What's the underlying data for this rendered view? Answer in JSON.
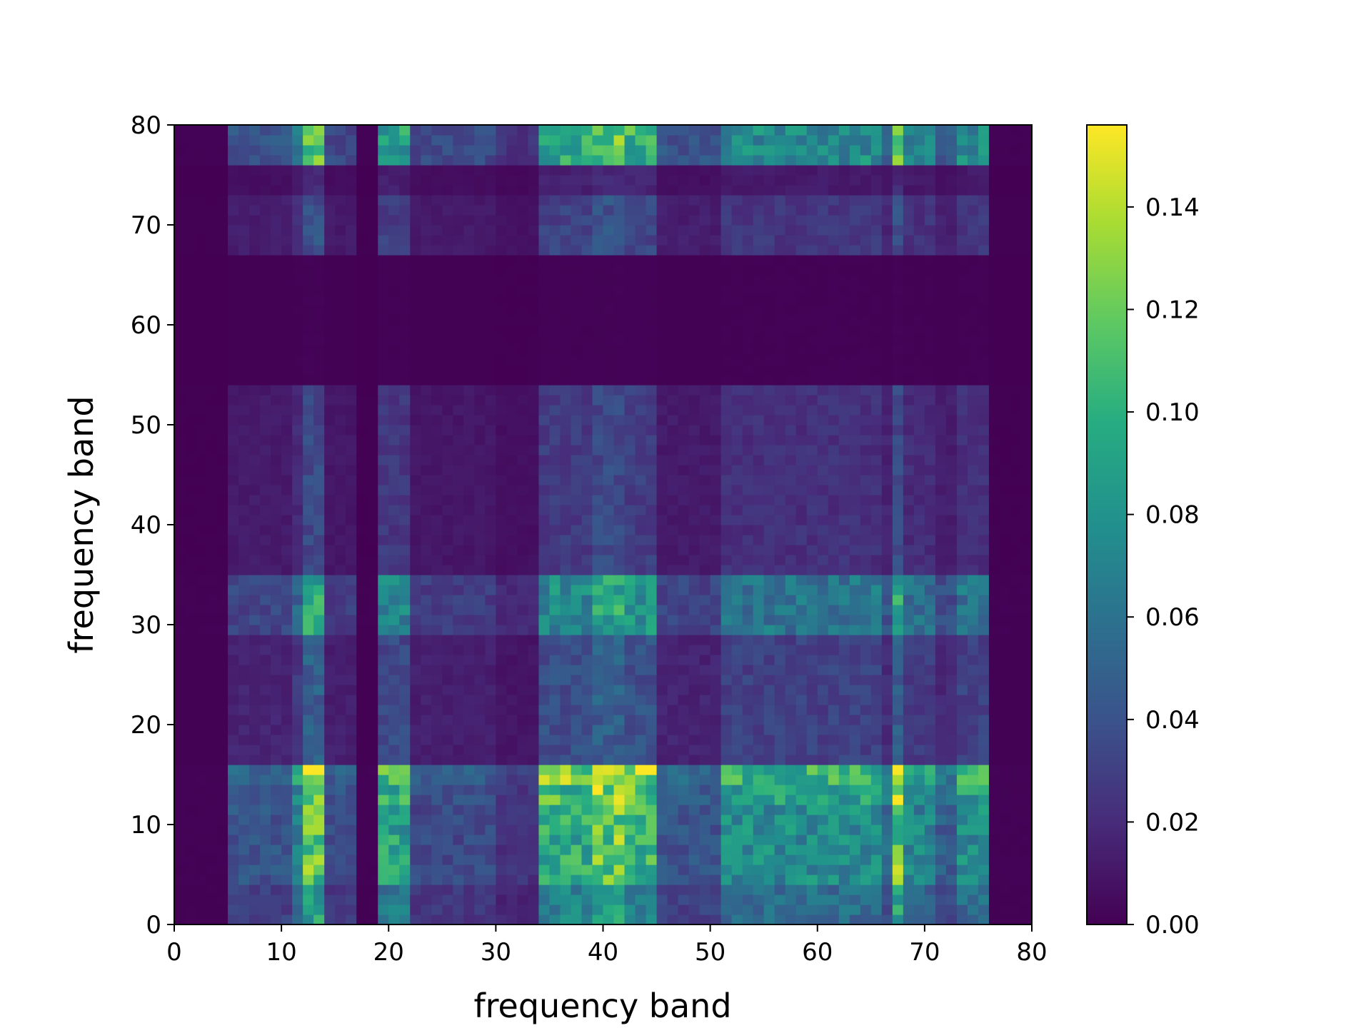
{
  "chart_data": {
    "type": "heatmap",
    "title": "",
    "xlabel": "frequency band",
    "ylabel": "frequency band",
    "xlim": [
      0,
      80
    ],
    "ylim": [
      0,
      80
    ],
    "x_ticks": [
      0,
      10,
      20,
      30,
      40,
      50,
      60,
      70,
      80
    ],
    "y_ticks": [
      0,
      10,
      20,
      30,
      40,
      50,
      60,
      70,
      80
    ],
    "grid_size": 80,
    "colormap": "viridis",
    "colorbar": {
      "vmin": 0.0,
      "vmax": 0.156,
      "ticks": [
        "0.00",
        "0.02",
        "0.04",
        "0.06",
        "0.08",
        "0.10",
        "0.12",
        "0.14"
      ],
      "placement": "right"
    },
    "grid": false,
    "row_bands": [
      {
        "y": [
          0,
          4
        ],
        "weight": 0.55
      },
      {
        "y": [
          4,
          12
        ],
        "weight": 0.75
      },
      {
        "y": [
          12,
          14
        ],
        "weight": 0.85
      },
      {
        "y": [
          14,
          16
        ],
        "weight": 1.0
      },
      {
        "y": [
          16,
          19
        ],
        "weight": 0.3
      },
      {
        "y": [
          19,
          29
        ],
        "weight": 0.3
      },
      {
        "y": [
          29,
          35
        ],
        "weight": 0.6
      },
      {
        "y": [
          35,
          54
        ],
        "weight": 0.22
      },
      {
        "y": [
          54,
          67
        ],
        "weight": 0.05
      },
      {
        "y": [
          67,
          73
        ],
        "weight": 0.25
      },
      {
        "y": [
          73,
          76
        ],
        "weight": 0.12
      },
      {
        "y": [
          76,
          80
        ],
        "weight": 0.75
      }
    ],
    "column_bands": [
      {
        "x": [
          0,
          5
        ],
        "weight": 0.05
      },
      {
        "x": [
          5,
          11
        ],
        "weight": 0.35
      },
      {
        "x": [
          11,
          12
        ],
        "weight": 0.55
      },
      {
        "x": [
          12,
          14
        ],
        "weight": 1.0
      },
      {
        "x": [
          14,
          17
        ],
        "weight": 0.3
      },
      {
        "x": [
          17,
          19
        ],
        "weight": 0.05
      },
      {
        "x": [
          19,
          22
        ],
        "weight": 0.75
      },
      {
        "x": [
          22,
          30
        ],
        "weight": 0.3
      },
      {
        "x": [
          30,
          34
        ],
        "weight": 0.2
      },
      {
        "x": [
          34,
          39
        ],
        "weight": 0.8
      },
      {
        "x": [
          39,
          42
        ],
        "weight": 1.0
      },
      {
        "x": [
          42,
          45
        ],
        "weight": 0.85
      },
      {
        "x": [
          45,
          51
        ],
        "weight": 0.35
      },
      {
        "x": [
          51,
          66
        ],
        "weight": 0.65
      },
      {
        "x": [
          66,
          67
        ],
        "weight": 0.45
      },
      {
        "x": [
          67,
          68
        ],
        "weight": 1.0
      },
      {
        "x": [
          68,
          71
        ],
        "weight": 0.6
      },
      {
        "x": [
          71,
          73
        ],
        "weight": 0.4
      },
      {
        "x": [
          73,
          76
        ],
        "weight": 0.65
      },
      {
        "x": [
          76,
          80
        ],
        "weight": 0.05
      }
    ],
    "hotspots": [
      {
        "x": 13,
        "y": 15,
        "value": 0.155
      },
      {
        "x": 40,
        "y": 15,
        "value": 0.15
      },
      {
        "x": 67,
        "y": 15,
        "value": 0.155
      },
      {
        "x": 13,
        "y": 78,
        "value": 0.12
      },
      {
        "x": 43,
        "y": 78,
        "value": 0.11
      },
      {
        "x": 40,
        "y": 7,
        "value": 0.12
      },
      {
        "x": 67,
        "y": 7,
        "value": 0.13
      },
      {
        "x": 20,
        "y": 15,
        "value": 0.12
      }
    ]
  }
}
